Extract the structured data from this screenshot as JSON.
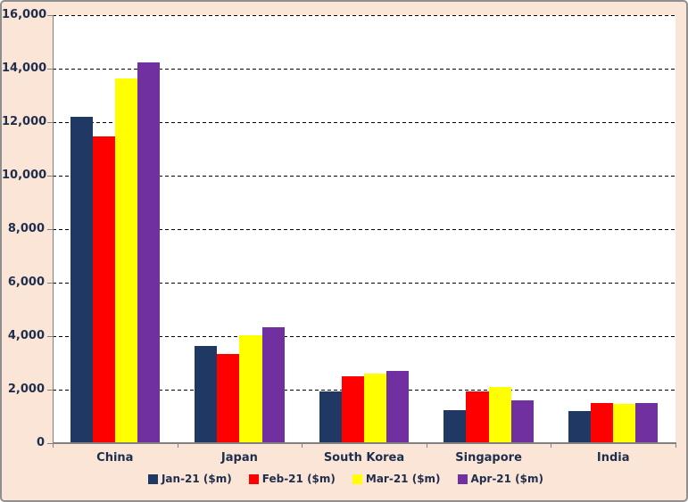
{
  "styles": {
    "background": "#FBE5D6",
    "plot_background": "#FFFFFF",
    "border_color": "#8F8F8F",
    "axis_color": "#808080",
    "grid_color": "#000000",
    "text_color": "#1F2E4D"
  },
  "chart_data": {
    "type": "bar",
    "title": "",
    "xlabel": "",
    "ylabel": "",
    "categories": [
      "China",
      "Japan",
      "South Korea",
      "Singapore",
      "India"
    ],
    "series": [
      {
        "name": "Jan-21 ($m)",
        "color": "#1F3864",
        "values": [
          12200,
          3650,
          1950,
          1250,
          1200
        ]
      },
      {
        "name": "Feb-21 ($m)",
        "color": "#FF0000",
        "values": [
          11480,
          3350,
          2500,
          1950,
          1500
        ]
      },
      {
        "name": "Mar-21 ($m)",
        "color": "#FFFF00",
        "values": [
          13650,
          4050,
          2600,
          2100,
          1480
        ]
      },
      {
        "name": "Apr-21 ($m)",
        "color": "#7030A0",
        "values": [
          14250,
          4330,
          2700,
          1600,
          1500
        ]
      }
    ],
    "ylim": [
      0,
      16000
    ],
    "ytick_step": 2000,
    "ytick_labels": [
      "0",
      "2,000",
      "4,000",
      "6,000",
      "8,000",
      "10,000",
      "12,000",
      "14,000",
      "16,000"
    ],
    "grid": "horizontal-dashed-black",
    "legend_position": "bottom-center"
  }
}
